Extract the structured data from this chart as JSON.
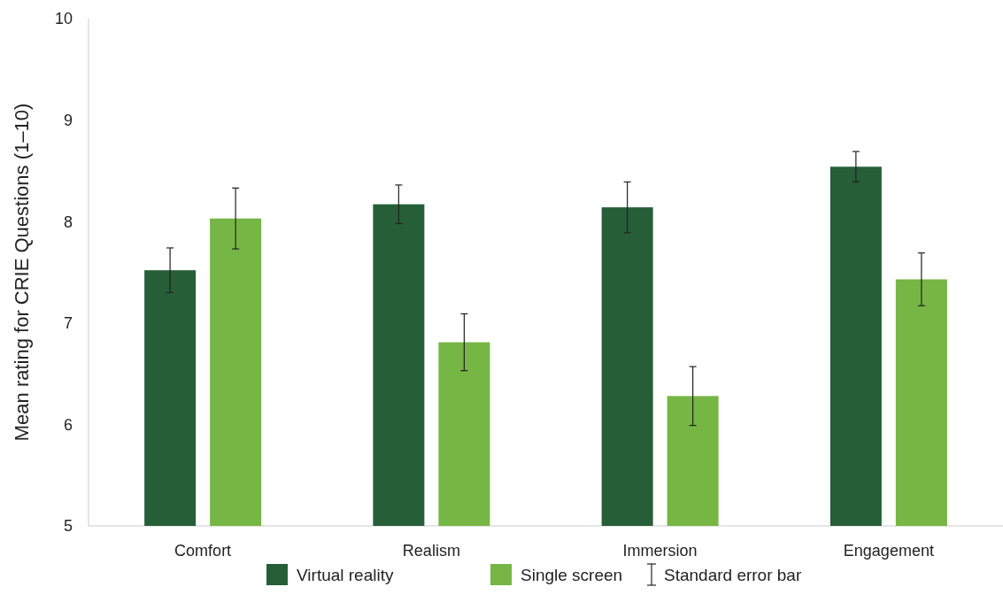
{
  "chart_data": {
    "type": "bar",
    "ylabel": "Mean rating for CRIE Questions (1–10)",
    "categories": [
      "Comfort",
      "Realism",
      "Immersion",
      "Engagement"
    ],
    "series": [
      {
        "name": "Virtual reality",
        "color": "#265e38",
        "values": [
          7.52,
          8.17,
          8.14,
          8.54
        ],
        "errors": [
          0.22,
          0.19,
          0.25,
          0.15
        ]
      },
      {
        "name": "Single screen",
        "color": "#76b644",
        "values": [
          8.03,
          6.81,
          6.28,
          7.43
        ],
        "errors": [
          0.3,
          0.28,
          0.29,
          0.26
        ]
      }
    ],
    "ylim": [
      5,
      10
    ],
    "yticks": [
      5,
      6,
      7,
      8,
      9,
      10
    ],
    "grid": false,
    "legend": "bottom",
    "annotations": [
      "Standard error bar"
    ]
  }
}
